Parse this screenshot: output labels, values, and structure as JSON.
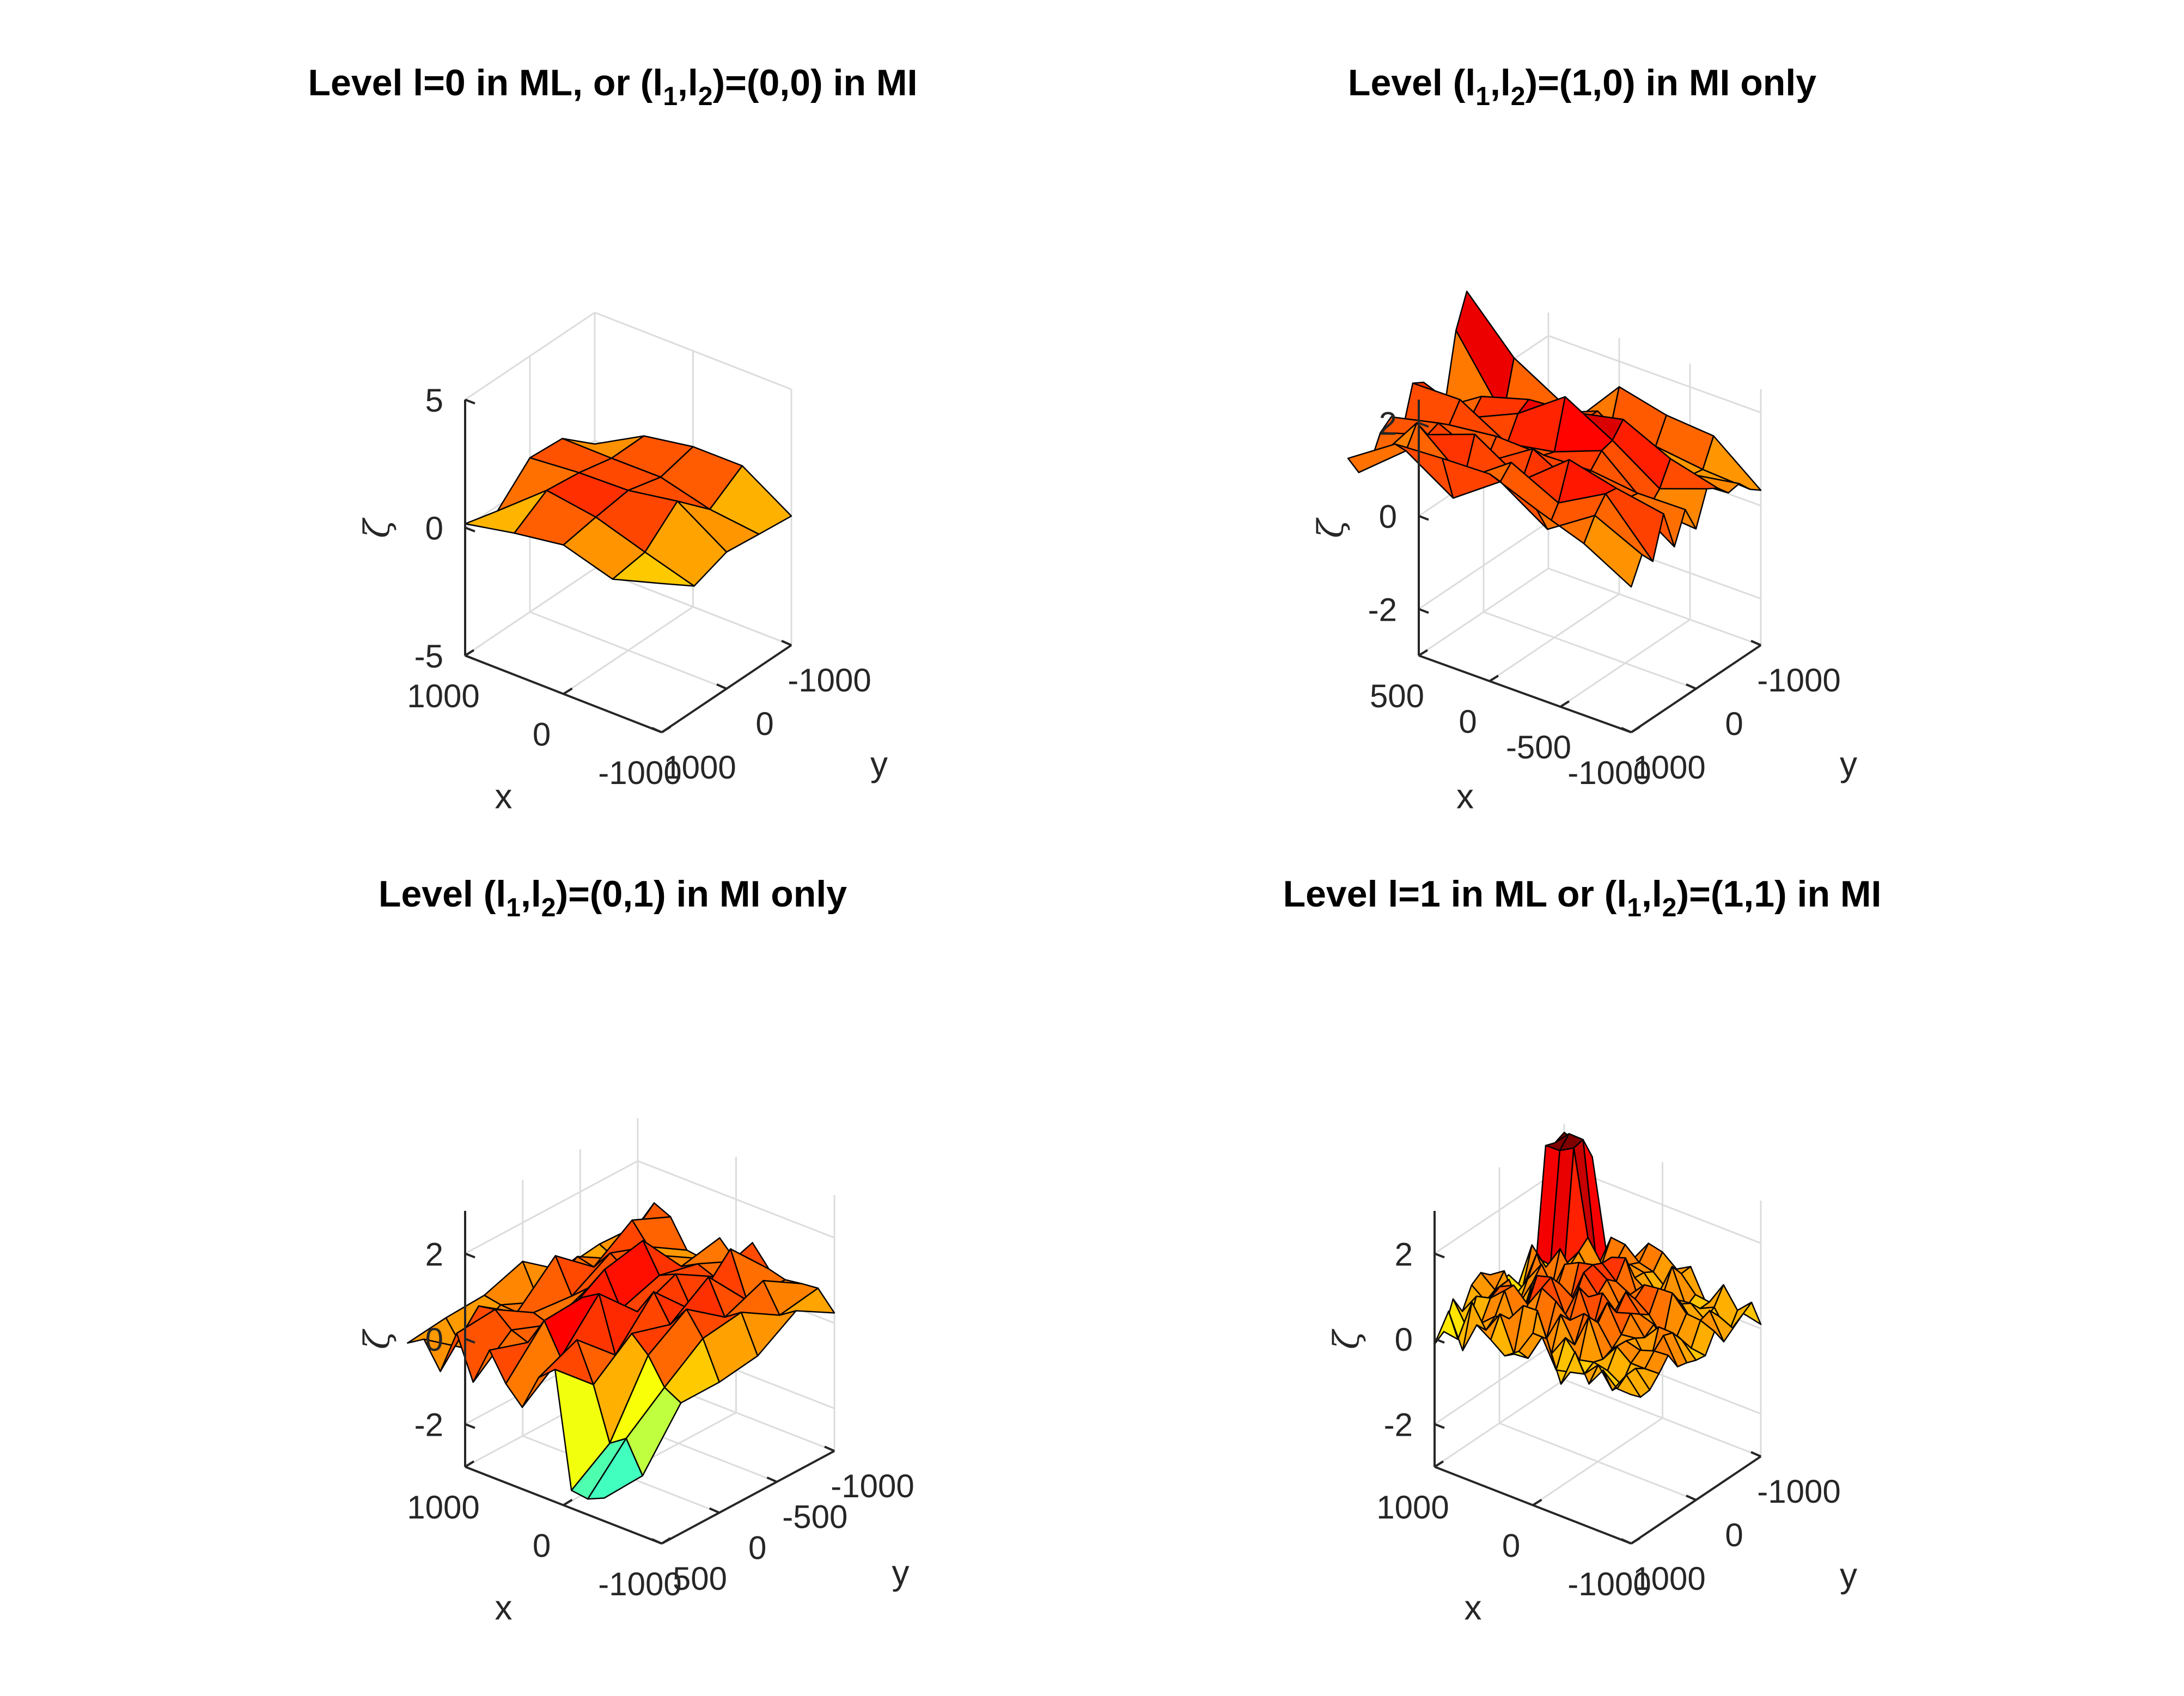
{
  "chart_data": [
    {
      "type": "surface",
      "title": {
        "main": "Level l=0 in ML, or (l",
        "sub1": "1",
        "mid": ",l",
        "sub2": "2",
        "tail": ")=(0,0) in MI"
      },
      "xlabel": "x",
      "ylabel": "y",
      "zlabel": "ζ",
      "xlim": [
        -1000,
        1000
      ],
      "ylim": [
        -1000,
        1000
      ],
      "zlim": [
        -5,
        5
      ],
      "xticks": [
        1000,
        0,
        -1000
      ],
      "xtick_labels": [
        "1000",
        "0",
        "-1000"
      ],
      "yticks": [
        1000,
        0,
        -1000
      ],
      "ytick_labels": [
        "1000",
        "0",
        "-1000"
      ],
      "zticks": [
        5,
        0,
        -5
      ],
      "ztick_labels": [
        "5",
        "0",
        "-5"
      ],
      "grid": true,
      "colormap": "jet",
      "clim": [
        -3,
        2.2
      ],
      "surface": {
        "x_range": [
          -1000,
          1000
        ],
        "y_range": [
          -1000,
          1000
        ],
        "nx": 4,
        "ny": 4,
        "seed": 11,
        "amp": 1.8,
        "base": 0.4,
        "mode": "l0"
      }
    },
    {
      "type": "surface",
      "title": {
        "main": "Level (l",
        "sub1": "1",
        "mid": ",l",
        "sub2": "2",
        "tail": ")=(1,0) in MI only"
      },
      "xlabel": "x",
      "ylabel": "y",
      "zlabel": "ζ",
      "xlim": [
        -1000,
        500
      ],
      "ylim": [
        -1000,
        1000
      ],
      "zlim": [
        -3,
        2.5
      ],
      "xticks": [
        500,
        0,
        -500,
        -1000
      ],
      "xtick_labels": [
        "500",
        "0",
        "-500",
        "-1000"
      ],
      "yticks": [
        1000,
        0,
        -1000
      ],
      "ytick_labels": [
        "1000",
        "0",
        "-1000"
      ],
      "zticks": [
        2,
        0,
        -2
      ],
      "ztick_labels": [
        "2",
        "0",
        "-2"
      ],
      "grid": true,
      "colormap": "jet",
      "clim": [
        -3,
        2.2
      ],
      "surface": {
        "x_range": [
          -1000,
          1000
        ],
        "y_range": [
          -1000,
          1000
        ],
        "nx": 6,
        "ny": 12,
        "seed": 23,
        "amp": 1.4,
        "base": 0.6,
        "mode": "l10"
      }
    },
    {
      "type": "surface",
      "title": {
        "main": "Level (l",
        "sub1": "1",
        "mid": ",l",
        "sub2": "2",
        "tail": ")=(0,1) in MI only"
      },
      "xlabel": "x",
      "ylabel": "y",
      "zlabel": "ζ",
      "xlim": [
        -1000,
        1000
      ],
      "ylim": [
        -1000,
        500
      ],
      "zlim": [
        -3,
        3
      ],
      "xticks": [
        1000,
        0,
        -1000
      ],
      "xtick_labels": [
        "1000",
        "0",
        "-1000"
      ],
      "yticks": [
        500,
        0,
        -500,
        -1000
      ],
      "ytick_labels": [
        "500",
        "0",
        "-500",
        "-1000"
      ],
      "zticks": [
        2,
        0,
        -2
      ],
      "ztick_labels": [
        "2",
        "0",
        "-2"
      ],
      "grid": true,
      "colormap": "jet",
      "clim": [
        -3,
        2.2
      ],
      "surface": {
        "x_range": [
          -1000,
          1000
        ],
        "y_range": [
          -1000,
          1000
        ],
        "nx": 12,
        "ny": 6,
        "seed": 37,
        "amp": 1.4,
        "base": 0.5,
        "mode": "l01"
      }
    },
    {
      "type": "surface",
      "title": {
        "main": "Level l=1 in ML or (l",
        "sub1": "1",
        "mid": ",l",
        "sub2": "2",
        "tail": ")=(1,1) in MI"
      },
      "xlabel": "x",
      "ylabel": "y",
      "zlabel": "ζ",
      "xlim": [
        -1000,
        1000
      ],
      "ylim": [
        -1000,
        1000
      ],
      "zlim": [
        -3,
        3
      ],
      "xticks": [
        1000,
        0,
        -1000
      ],
      "xtick_labels": [
        "1000",
        "0",
        "-1000"
      ],
      "yticks": [
        1000,
        0,
        -1000
      ],
      "ytick_labels": [
        "1000",
        "0",
        "-1000"
      ],
      "zticks": [
        2,
        0,
        -2
      ],
      "ztick_labels": [
        "2",
        "0",
        "-2"
      ],
      "grid": true,
      "colormap": "jet",
      "clim": [
        -3,
        2.2
      ],
      "surface": {
        "x_range": [
          -1000,
          1000
        ],
        "y_range": [
          -1000,
          1000
        ],
        "nx": 14,
        "ny": 14,
        "seed": 51,
        "amp": 1.1,
        "base": 0.3,
        "mode": "l11"
      }
    }
  ]
}
